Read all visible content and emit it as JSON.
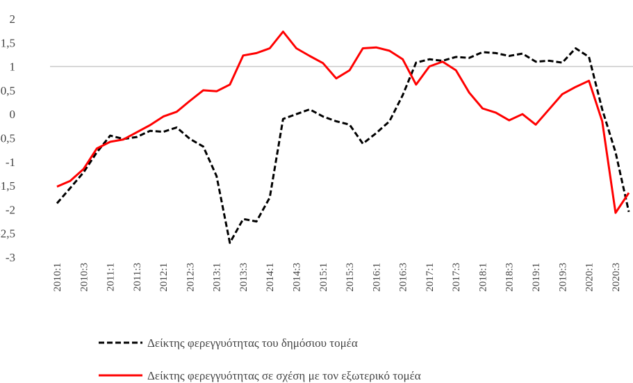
{
  "chart_data": {
    "type": "line",
    "categories": [
      "2010:1",
      null,
      "2010:3",
      null,
      "2011:1",
      null,
      "2011:3",
      null,
      "2012:1",
      null,
      "2012:3",
      null,
      "2013:1",
      null,
      "2013:3",
      null,
      "2014:1",
      null,
      "2014:3",
      null,
      "2015:1",
      null,
      "2015:3",
      null,
      "2016:1",
      null,
      "2016:3",
      null,
      "2017:1",
      null,
      "2017:3",
      null,
      "2018:1",
      null,
      "2018:3",
      null,
      "2019:1",
      null,
      "2019:3",
      null,
      "2020:1",
      null,
      "2020:3",
      null
    ],
    "series": [
      {
        "name": "Δείκτης φερεγγυότητας του δημόσιου τομέα",
        "color": "#000000",
        "dashed": true,
        "values": [
          -1.87,
          -1.55,
          -1.22,
          -0.8,
          -0.45,
          -0.52,
          -0.48,
          -0.35,
          -0.37,
          -0.28,
          -0.52,
          -0.68,
          -1.3,
          -2.7,
          -2.2,
          -2.25,
          -1.75,
          -0.1,
          0.0,
          0.1,
          -0.05,
          -0.15,
          -0.22,
          -0.62,
          -0.4,
          -0.15,
          0.4,
          1.08,
          1.15,
          1.12,
          1.2,
          1.18,
          1.3,
          1.28,
          1.22,
          1.27,
          1.1,
          1.12,
          1.08,
          1.38,
          1.2,
          0.1,
          -0.8,
          -2.05
        ]
      },
      {
        "name": "Δείκτης φερεγγυότητας σε σχέση με τον εξωτερικό τομέα",
        "color": "#ff0000",
        "dashed": false,
        "values": [
          -1.52,
          -1.4,
          -1.15,
          -0.72,
          -0.58,
          -0.53,
          -0.38,
          -0.23,
          -0.05,
          0.05,
          0.28,
          0.5,
          0.48,
          0.62,
          1.23,
          1.28,
          1.38,
          1.73,
          1.38,
          1.22,
          1.07,
          0.75,
          0.92,
          1.38,
          1.4,
          1.33,
          1.15,
          0.62,
          1.0,
          1.1,
          0.92,
          0.45,
          0.12,
          0.03,
          -0.13,
          0.0,
          -0.22,
          0.1,
          0.42,
          0.57,
          0.7,
          -0.15,
          -2.07,
          -1.65
        ]
      }
    ],
    "ylim": [
      -3,
      2
    ],
    "yticks": [
      -3,
      {
        "value": -2.5,
        "label": "-2,5"
      },
      -2,
      {
        "value": -1.5,
        "label": "-1,5"
      },
      -1,
      {
        "value": -0.5,
        "label": "-0,5"
      },
      0,
      {
        "value": 0.5,
        "label": "0,5"
      },
      1,
      {
        "value": 1.5,
        "label": "1,5"
      },
      2
    ],
    "reference_line": 1,
    "legend": "bottom"
  }
}
